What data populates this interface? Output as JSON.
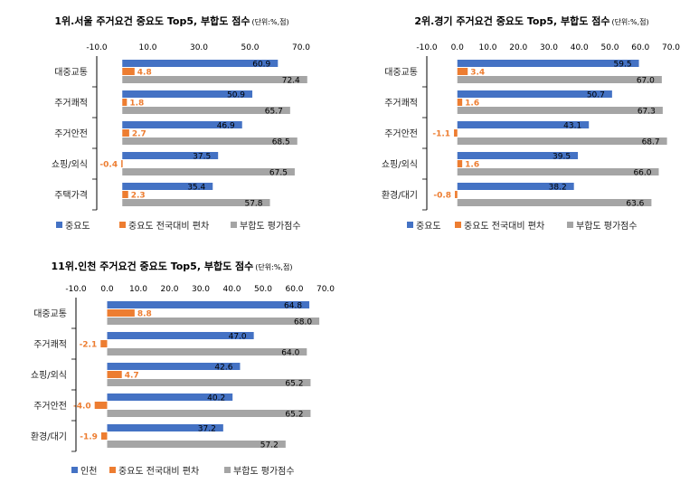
{
  "colors": {
    "s1": "#4472C4",
    "s2": "#ED7D31",
    "s3": "#A5A5A5",
    "axis": "#000000"
  },
  "chart_data": [
    {
      "type": "bar",
      "title": "1위.서울 주거요건 중요도 Top5, 부합도 점수",
      "unit": "(단위:%,점)",
      "xlim": [
        -10,
        70
      ],
      "ticks": [
        "-10.0",
        "10.0",
        "30.0",
        "50.0",
        "70.0"
      ],
      "tick_values": [
        -10,
        10,
        30,
        50,
        70
      ],
      "categories": [
        "대중교통",
        "주거쾌적",
        "주거안전",
        "쇼핑/외식",
        "주택가격"
      ],
      "series": [
        {
          "name": "중요도",
          "values": [
            60.9,
            50.9,
            46.9,
            37.5,
            35.4
          ],
          "labels": [
            "60.9",
            "50.9",
            "46.9",
            "37.5",
            "35.4"
          ]
        },
        {
          "name": "중요도 전국대비 편차",
          "values": [
            4.8,
            1.8,
            2.7,
            -0.4,
            2.3
          ],
          "labels": [
            "4.8",
            "1.8",
            "2.7",
            "-0.4",
            "2.3"
          ]
        },
        {
          "name": "부합도 평가점수",
          "values": [
            72.4,
            65.7,
            68.5,
            67.5,
            57.8
          ],
          "labels": [
            "72.4",
            "65.7",
            "68.5",
            "67.5",
            "57.8"
          ]
        }
      ]
    },
    {
      "type": "bar",
      "title": "2위.경기 주거요건 중요도 Top5, 부합도 점수",
      "unit": "(단위:%,점)",
      "xlim": [
        -10,
        70
      ],
      "ticks": [
        "-10.0",
        "0.0",
        "10.0",
        "20.0",
        "30.0",
        "40.0",
        "50.0",
        "60.0",
        "70.0"
      ],
      "tick_values": [
        -10,
        0,
        10,
        20,
        30,
        40,
        50,
        60,
        70
      ],
      "categories": [
        "대중교통",
        "주거쾌적",
        "주거안전",
        "쇼핑/외식",
        "환경/대기"
      ],
      "series": [
        {
          "name": "중요도",
          "values": [
            59.5,
            50.7,
            43.1,
            39.5,
            38.2
          ],
          "labels": [
            "59.5",
            "50.7",
            "43.1",
            "39.5",
            "38.2"
          ]
        },
        {
          "name": "중요도 전국대비 편차",
          "values": [
            3.4,
            1.6,
            -1.1,
            1.6,
            -0.8
          ],
          "labels": [
            "3.4",
            "1.6",
            "-1.1",
            "1.6",
            "-0.8"
          ]
        },
        {
          "name": "부합도 평가점수",
          "values": [
            67.0,
            67.3,
            68.7,
            66.0,
            63.6
          ],
          "labels": [
            "67.0",
            "67.3",
            "68.7",
            "66.0",
            "63.6"
          ]
        }
      ]
    },
    {
      "type": "bar",
      "title": "11위.인천 주거요건 중요도 Top5, 부합도 점수",
      "unit": "(단위:%,점)",
      "xlim": [
        -10,
        70
      ],
      "ticks": [
        "-10.0",
        "0.0",
        "10.0",
        "20.0",
        "30.0",
        "40.0",
        "50.0",
        "60.0",
        "70.0"
      ],
      "tick_values": [
        -10,
        0,
        10,
        20,
        30,
        40,
        50,
        60,
        70
      ],
      "categories": [
        "대중교통",
        "주거쾌적",
        "쇼핑/외식",
        "주거안전",
        "환경/대기"
      ],
      "series": [
        {
          "name": "인천",
          "values": [
            64.8,
            47.0,
            42.6,
            40.2,
            37.2
          ],
          "labels": [
            "64.8",
            "47.0",
            "42.6",
            "40.2",
            "37.2"
          ]
        },
        {
          "name": "중요도 전국대비 편차",
          "values": [
            8.8,
            -2.1,
            4.7,
            -4.0,
            -1.9
          ],
          "labels": [
            "8.8",
            "-2.1",
            "4.7",
            "-4.0",
            "-1.9"
          ]
        },
        {
          "name": "부합도 평가점수",
          "values": [
            68.0,
            64.0,
            65.2,
            65.2,
            57.2
          ],
          "labels": [
            "68.0",
            "64.0",
            "65.2",
            "65.2",
            "57.2"
          ]
        }
      ]
    }
  ]
}
